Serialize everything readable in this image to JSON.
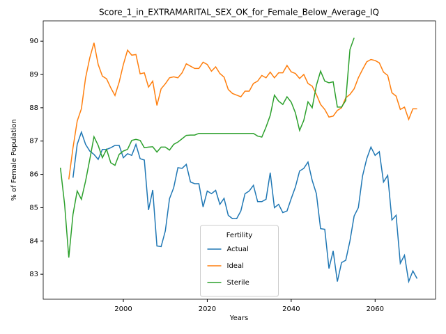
{
  "chart_data": {
    "type": "line",
    "title": "Score_1_in_EXTRAMARITAL_SEX_OK_for_Female_Below_Average_IQ",
    "xlabel": "Years",
    "ylabel": "% of Female Population",
    "legend_title": "Fertility",
    "legend": "lower center",
    "grid": false,
    "x": [
      1985,
      1986,
      1987,
      1988,
      1989,
      1990,
      1991,
      1992,
      1993,
      1994,
      1995,
      1996,
      1997,
      1998,
      1999,
      2000,
      2001,
      2002,
      2003,
      2004,
      2005,
      2006,
      2007,
      2008,
      2009,
      2010,
      2011,
      2012,
      2013,
      2014,
      2015,
      2016,
      2017,
      2018,
      2019,
      2020,
      2021,
      2022,
      2023,
      2024,
      2025,
      2026,
      2027,
      2028,
      2029,
      2030,
      2031,
      2032,
      2033,
      2034,
      2035,
      2036,
      2037,
      2038,
      2039,
      2040,
      2041,
      2042,
      2043,
      2044,
      2045,
      2046,
      2047,
      2048,
      2049,
      2050,
      2051,
      2052,
      2053,
      2054,
      2055,
      2056,
      2057,
      2058,
      2059,
      2060,
      2061,
      2062,
      2063,
      2064,
      2065,
      2066,
      2067,
      2068,
      2069,
      2070
    ],
    "series": [
      {
        "name": "Actual",
        "color": "#1f77b4",
        "values": [
          null,
          null,
          null,
          85.9,
          86.9,
          87.27,
          86.9,
          86.7,
          86.6,
          86.45,
          86.75,
          86.75,
          86.8,
          86.87,
          86.87,
          86.5,
          86.62,
          86.57,
          86.9,
          86.47,
          86.43,
          84.93,
          85.53,
          83.85,
          83.83,
          84.3,
          85.27,
          85.6,
          86.2,
          86.18,
          86.3,
          85.77,
          85.72,
          85.72,
          85.02,
          85.5,
          85.42,
          85.52,
          85.1,
          85.28,
          84.77,
          84.67,
          84.67,
          84.9,
          85.42,
          85.5,
          85.67,
          85.18,
          85.18,
          85.25,
          86.05,
          85.0,
          85.1,
          84.85,
          84.9,
          85.27,
          85.62,
          86.1,
          86.18,
          86.37,
          85.82,
          85.42,
          84.37,
          84.35,
          83.17,
          83.7,
          82.78,
          83.35,
          83.42,
          84.0,
          84.75,
          85.0,
          85.95,
          86.47,
          86.82,
          86.57,
          86.68,
          85.77,
          85.97,
          84.63,
          84.77,
          83.33,
          83.57,
          82.78,
          83.1,
          82.87
        ]
      },
      {
        "name": "Ideal",
        "color": "#ff7f0e",
        "values": [
          null,
          null,
          85.85,
          86.8,
          87.6,
          87.97,
          88.9,
          89.5,
          89.95,
          89.3,
          88.95,
          88.87,
          88.6,
          88.37,
          88.77,
          89.3,
          89.73,
          89.58,
          89.6,
          89.02,
          89.05,
          88.62,
          88.8,
          88.07,
          88.57,
          88.72,
          88.9,
          88.93,
          88.9,
          89.05,
          89.32,
          89.25,
          89.18,
          89.18,
          89.37,
          89.3,
          89.1,
          89.23,
          89.03,
          88.92,
          88.55,
          88.43,
          88.38,
          88.33,
          88.5,
          88.5,
          88.73,
          88.8,
          88.97,
          88.9,
          89.07,
          88.9,
          89.05,
          89.05,
          89.27,
          89.08,
          89.03,
          88.88,
          89.0,
          88.73,
          88.65,
          88.4,
          88.1,
          87.95,
          87.72,
          87.75,
          87.92,
          88.0,
          88.3,
          88.4,
          88.57,
          88.9,
          89.15,
          89.38,
          89.45,
          89.42,
          89.35,
          89.07,
          88.97,
          88.45,
          88.35,
          87.95,
          88.02,
          87.65,
          87.97,
          87.97
        ]
      },
      {
        "name": "Sterile",
        "color": "#2ca02c",
        "values": [
          86.2,
          85.1,
          83.5,
          84.8,
          85.5,
          85.25,
          85.8,
          86.45,
          87.13,
          86.87,
          86.5,
          86.75,
          86.35,
          86.27,
          86.6,
          86.7,
          86.75,
          87.02,
          87.05,
          87.02,
          86.8,
          86.82,
          86.83,
          86.67,
          86.82,
          86.82,
          86.73,
          86.9,
          86.97,
          87.07,
          87.17,
          87.18,
          87.18,
          87.23,
          87.23,
          87.23,
          87.23,
          87.23,
          87.23,
          87.23,
          87.23,
          87.23,
          87.23,
          87.23,
          87.23,
          87.23,
          87.23,
          87.15,
          87.12,
          87.42,
          87.77,
          88.38,
          88.2,
          88.1,
          88.33,
          88.17,
          87.85,
          87.32,
          87.62,
          88.18,
          88.0,
          88.67,
          89.1,
          88.8,
          88.75,
          88.78,
          88.02,
          88.02,
          88.22,
          89.75,
          90.1,
          null,
          null,
          null,
          null,
          null,
          null,
          null,
          null,
          null,
          null,
          null,
          null,
          null,
          null,
          null
        ]
      }
    ],
    "xlim": [
      1980.9,
      2074.4
    ],
    "xticks": [
      2000,
      2020,
      2040,
      2060
    ],
    "ylim": [
      82.25,
      90.61
    ],
    "yticks": [
      83,
      84,
      85,
      86,
      87,
      88,
      89,
      90
    ]
  }
}
